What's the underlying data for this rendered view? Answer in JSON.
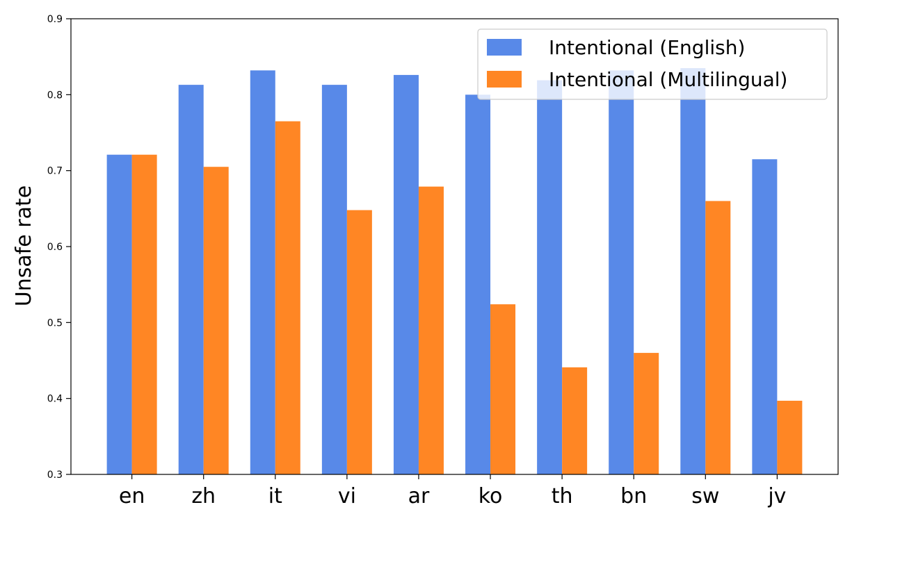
{
  "chart_data": {
    "type": "bar",
    "title": "",
    "xlabel": "",
    "ylabel": "Unsafe rate",
    "ylim": [
      0.3,
      0.9
    ],
    "yticks": [
      "0.3",
      "0.4",
      "0.5",
      "0.6",
      "0.7",
      "0.8",
      "0.9"
    ],
    "categories": [
      "en",
      "zh",
      "it",
      "vi",
      "ar",
      "ko",
      "th",
      "bn",
      "sw",
      "jv"
    ],
    "series": [
      {
        "name": "Intentional (English)",
        "color": "#5889e8",
        "values": [
          0.721,
          0.813,
          0.832,
          0.813,
          0.826,
          0.8,
          0.819,
          0.832,
          0.835,
          0.715
        ]
      },
      {
        "name": "Intentional (Multilingual)",
        "color": "#ff8624",
        "values": [
          0.721,
          0.705,
          0.765,
          0.648,
          0.679,
          0.524,
          0.441,
          0.46,
          0.66,
          0.397
        ]
      }
    ],
    "legend_position": "top-right",
    "grid": false
  }
}
